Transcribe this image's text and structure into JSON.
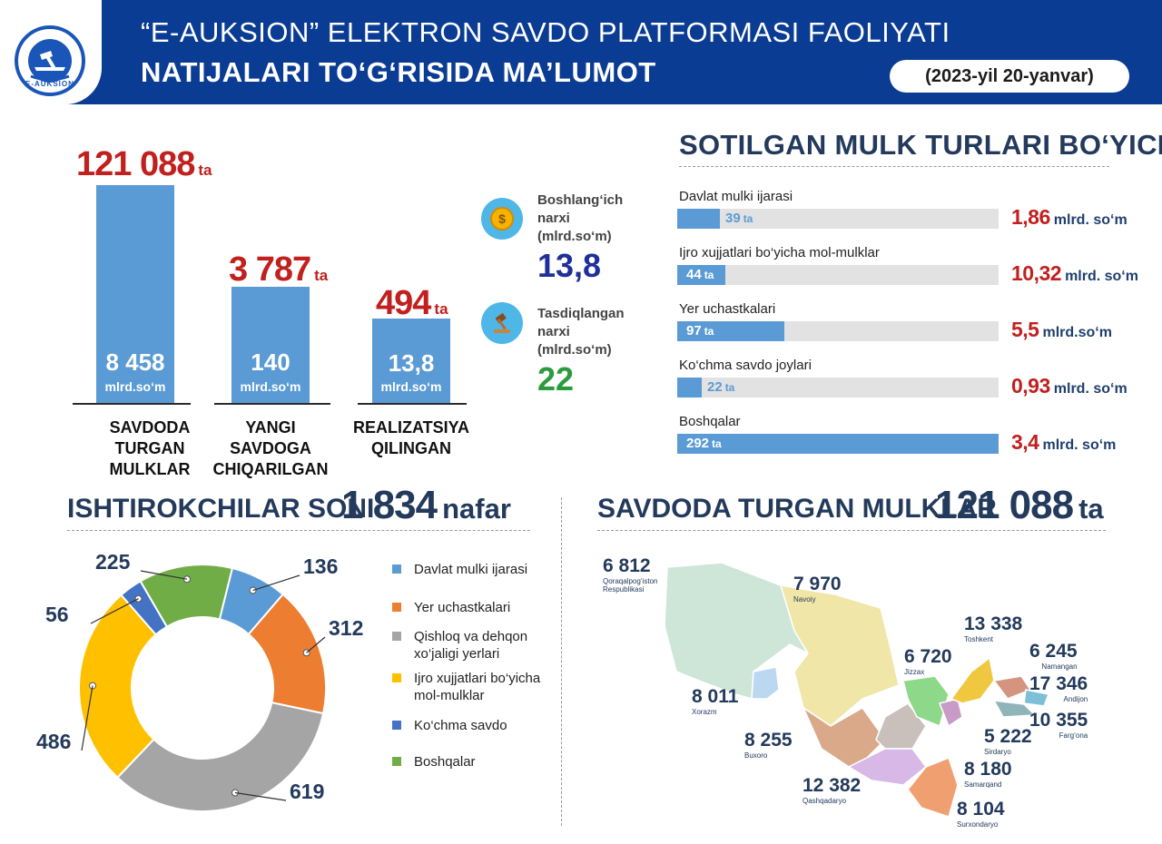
{
  "header": {
    "logo_text": "E-AUKSION",
    "title_line1": "“E-AUKSION” ELEKTRON SAVDO PLATFORMASI FAOLIYATI",
    "title_line2": "NATIJALARI TO‘G‘RISIDA MA’LUMOT",
    "date": "(2023-yil 20-yanvar)"
  },
  "summary_bars": [
    {
      "count": "121 088",
      "count_unit": "ta",
      "value": "8 458",
      "value_unit": "mlrd.so‘m",
      "label": "SAVDODA TURGAN MULKLAR"
    },
    {
      "count": "3 787",
      "count_unit": "ta",
      "value": "140",
      "value_unit": "mlrd.so‘m",
      "label": "YANGI SAVDOGA CHIQARILGAN"
    },
    {
      "count": "494",
      "count_unit": "ta",
      "value": "13,8",
      "value_unit": "mlrd.so‘m",
      "label": "REALIZATSIYA QILINGAN"
    }
  ],
  "prices": [
    {
      "icon": "coin-icon",
      "label": "Boshlang‘ich narxi (mlrd.so‘m)",
      "value": "13,8",
      "color": "#1f2f9a"
    },
    {
      "icon": "gavel-icon",
      "label": "Tasdiqlangan narxi (mlrd.so‘m)",
      "value": "22",
      "color": "#2e9a3e"
    }
  ],
  "property_types": {
    "title": "SOTILGAN MULK TURLARI BO‘YICHA",
    "unit_count": "ta",
    "items": [
      {
        "label": "Davlat mulki ijarasi",
        "count": "39",
        "fill": 0.134,
        "sum": "1,86",
        "sum_unit": "mlrd. so‘m"
      },
      {
        "label": "Ijro xujjatlari bo‘yicha mol-mulklar",
        "count": "44",
        "fill": 0.151,
        "sum": "10,32",
        "sum_unit": "mlrd. so‘m"
      },
      {
        "label": "Yer uchastkalari",
        "count": "97",
        "fill": 0.332,
        "sum": "5,5",
        "sum_unit": "mlrd.so‘m"
      },
      {
        "label": "Ko‘chma savdo joylari",
        "count": "22",
        "fill": 0.075,
        "sum": "0,93",
        "sum_unit": "mlrd. so‘m"
      },
      {
        "label": "Boshqalar",
        "count": "292",
        "fill": 1.0,
        "sum": "3,4",
        "sum_unit": "mlrd. so‘m"
      }
    ]
  },
  "participants": {
    "title": "ISHTIROKCHILAR SONI",
    "total": "1 834",
    "total_unit": "nafar"
  },
  "chart_data": {
    "type": "pie",
    "categories": [
      "Davlat mulki ijarasi",
      "Yer uchastkalari",
      "Qishloq va dehqon xo‘jaligi yerlari",
      "Ijro xujjatlari bo‘yicha mol-mulklar",
      "Ko‘chma savdo",
      "Boshqalar"
    ],
    "values": [
      136,
      312,
      619,
      486,
      56,
      225
    ],
    "colors": [
      "#5b9bd5",
      "#ed7d31",
      "#a5a5a5",
      "#ffc000",
      "#4472c4",
      "#70ad47"
    ],
    "legend_placement": "right"
  },
  "donut_legend": [
    "Davlat mulki ijarasi",
    "Yer uchastkalari",
    "Qishloq va dehqon xo‘jaligi yerlari",
    "Ijro xujjatlari bo‘yicha mol-mulklar",
    "Ko‘chma savdo",
    "Boshqalar"
  ],
  "donut_labels": [
    "136",
    "312",
    "619",
    "486",
    "56",
    "225"
  ],
  "regions_section": {
    "title": "SAVDODA TURGAN MULKLAR",
    "total": "121 088",
    "total_unit": "ta",
    "regions": [
      {
        "value": "6 812",
        "name": "Qoraqalpog‘iston Respublikasi"
      },
      {
        "value": "7 970",
        "name": "Navoiy"
      },
      {
        "value": "13 338",
        "name": "Toshkent"
      },
      {
        "value": "6 720",
        "name": "Jizzax"
      },
      {
        "value": "6 245",
        "name": "Namangan"
      },
      {
        "value": "17 346",
        "name": "Andijon"
      },
      {
        "value": "8 011",
        "name": "Xorazm"
      },
      {
        "value": "10 355",
        "name": "Farg‘ona"
      },
      {
        "value": "8 255",
        "name": "Buxoro"
      },
      {
        "value": "5 222",
        "name": "Sirdaryo"
      },
      {
        "value": "8 180",
        "name": "Samarqand"
      },
      {
        "value": "12 382",
        "name": "Qashqadaryo"
      },
      {
        "value": "8 104",
        "name": "Surxondaryo"
      }
    ]
  }
}
